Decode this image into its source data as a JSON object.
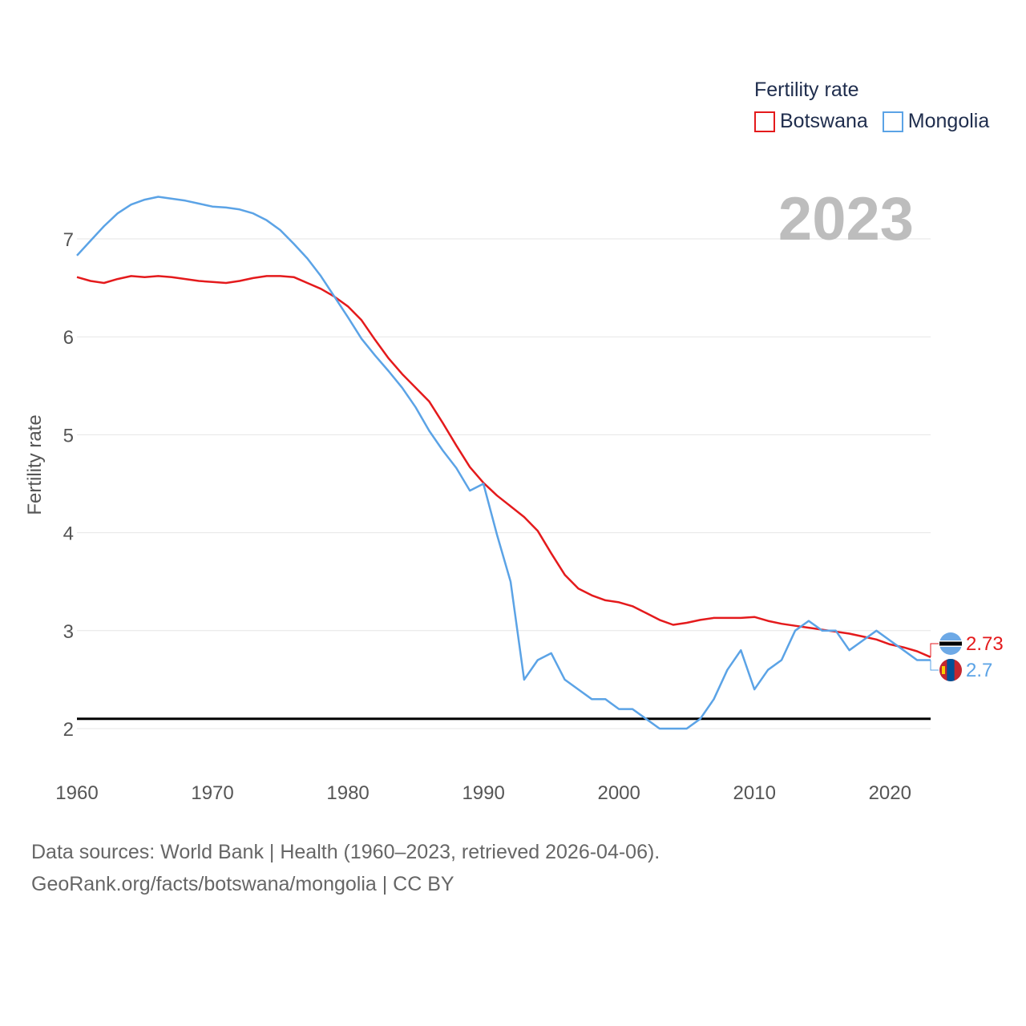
{
  "chart_data": {
    "type": "line",
    "title": "Fertility rate",
    "ylabel": "Fertility rate",
    "xlabel": "",
    "current_year_label": "2023",
    "xlim": [
      1960,
      2023
    ],
    "ylim": [
      1.5,
      7.6
    ],
    "x_ticks": [
      1960,
      1970,
      1980,
      1990,
      2000,
      2010,
      2020
    ],
    "y_ticks": [
      2,
      3,
      4,
      5,
      6,
      7
    ],
    "reference_line": 2.1,
    "x": [
      1960,
      1961,
      1962,
      1963,
      1964,
      1965,
      1966,
      1967,
      1968,
      1969,
      1970,
      1971,
      1972,
      1973,
      1974,
      1975,
      1976,
      1977,
      1978,
      1979,
      1980,
      1981,
      1982,
      1983,
      1984,
      1985,
      1986,
      1987,
      1988,
      1989,
      1990,
      1991,
      1992,
      1993,
      1994,
      1995,
      1996,
      1997,
      1998,
      1999,
      2000,
      2001,
      2002,
      2003,
      2004,
      2005,
      2006,
      2007,
      2008,
      2009,
      2010,
      2011,
      2012,
      2013,
      2014,
      2015,
      2016,
      2017,
      2018,
      2019,
      2020,
      2021,
      2022,
      2023
    ],
    "series": [
      {
        "name": "Botswana",
        "color": "#e41a1c",
        "end_label": "2.73",
        "values": [
          6.61,
          6.57,
          6.55,
          6.59,
          6.62,
          6.61,
          6.62,
          6.61,
          6.59,
          6.57,
          6.56,
          6.55,
          6.57,
          6.6,
          6.62,
          6.62,
          6.61,
          6.55,
          6.49,
          6.41,
          6.31,
          6.17,
          5.97,
          5.78,
          5.62,
          5.48,
          5.34,
          5.12,
          4.89,
          4.67,
          4.51,
          4.38,
          4.27,
          4.16,
          4.02,
          3.79,
          3.57,
          3.43,
          3.36,
          3.31,
          3.29,
          3.25,
          3.18,
          3.11,
          3.06,
          3.08,
          3.11,
          3.13,
          3.13,
          3.13,
          3.14,
          3.1,
          3.07,
          3.05,
          3.03,
          3.01,
          2.99,
          2.97,
          2.94,
          2.91,
          2.86,
          2.83,
          2.79,
          2.73
        ]
      },
      {
        "name": "Mongolia",
        "color": "#5ba3e6",
        "end_label": "2.7",
        "values": [
          6.83,
          6.98,
          7.13,
          7.26,
          7.35,
          7.4,
          7.43,
          7.41,
          7.39,
          7.36,
          7.33,
          7.32,
          7.3,
          7.26,
          7.19,
          7.09,
          6.95,
          6.8,
          6.62,
          6.41,
          6.2,
          5.98,
          5.81,
          5.65,
          5.48,
          5.28,
          5.04,
          4.84,
          4.66,
          4.43,
          4.5,
          3.98,
          3.5,
          2.5,
          2.7,
          2.77,
          2.5,
          2.4,
          2.3,
          2.3,
          2.2,
          2.2,
          2.1,
          2.0,
          2.0,
          2.0,
          2.1,
          2.3,
          2.6,
          2.8,
          2.4,
          2.6,
          2.7,
          3.0,
          3.1,
          3.0,
          3.0,
          2.8,
          2.9,
          3.0,
          2.9,
          2.8,
          2.7,
          2.7
        ]
      }
    ]
  },
  "legend": {
    "title": "Fertility rate",
    "items": [
      {
        "label": "Botswana",
        "color": "#e41a1c"
      },
      {
        "label": "Mongolia",
        "color": "#5ba3e6"
      }
    ]
  },
  "footer": {
    "line1": "Data sources: World Bank | Health (1960–2023, retrieved 2026-04-06).",
    "line2": "GeoRank.org/facts/botswana/mongolia | CC BY"
  }
}
